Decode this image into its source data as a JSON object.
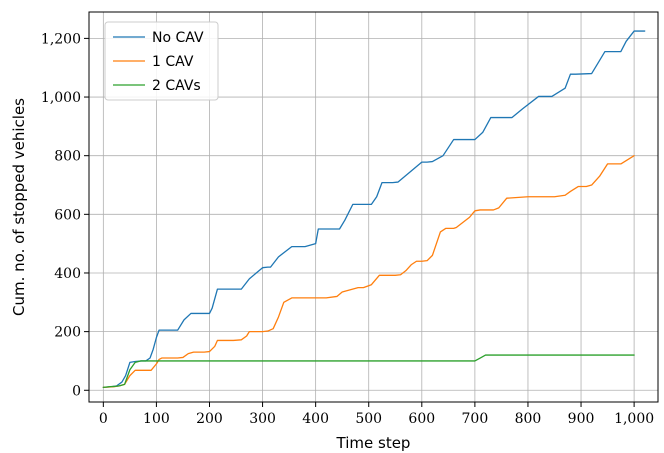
{
  "chart_data": {
    "type": "line",
    "xlabel": "Time step",
    "ylabel": "Cum. no. of stopped vehicles",
    "xlim": [
      -27,
      1045
    ],
    "ylim": [
      -40,
      1290
    ],
    "xticks": [
      0,
      100,
      200,
      300,
      400,
      500,
      600,
      700,
      800,
      900,
      1000
    ],
    "xtick_labels": [
      "0",
      "100",
      "200",
      "300",
      "400",
      "500",
      "600",
      "700",
      "800",
      "900",
      "1,000"
    ],
    "yticks": [
      0,
      200,
      400,
      600,
      800,
      1000,
      1200
    ],
    "ytick_labels": [
      "0",
      "200",
      "400",
      "600",
      "800",
      "1,000",
      "1,200"
    ],
    "grid": true,
    "legend_position": "top-left",
    "colors": {
      "No CAV": "#1f77b4",
      "1 CAV": "#ff7f0e",
      "2 CAVs": "#2ca02c"
    },
    "series": [
      {
        "name": "No CAV",
        "x": [
          0,
          15,
          25,
          35,
          42,
          50,
          60,
          72,
          80,
          88,
          94,
          100,
          105,
          115,
          140,
          152,
          165,
          190,
          200,
          205,
          215,
          250,
          260,
          275,
          300,
          310,
          315,
          330,
          355,
          370,
          380,
          400,
          405,
          420,
          445,
          455,
          470,
          495,
          505,
          515,
          525,
          545,
          555,
          575,
          600,
          610,
          620,
          640,
          660,
          670,
          700,
          715,
          730,
          760,
          770,
          790,
          820,
          830,
          845,
          870,
          880,
          890,
          920,
          930,
          945,
          965,
          975,
          985,
          1000,
          1020
        ],
        "y": [
          10,
          12,
          15,
          28,
          50,
          95,
          98,
          100,
          100,
          110,
          140,
          180,
          205,
          205,
          205,
          240,
          262,
          262,
          262,
          280,
          345,
          345,
          345,
          380,
          418,
          420,
          420,
          455,
          490,
          490,
          490,
          500,
          550,
          550,
          550,
          580,
          634,
          634,
          634,
          660,
          708,
          708,
          710,
          740,
          778,
          778,
          780,
          800,
          855,
          855,
          855,
          880,
          930,
          930,
          930,
          960,
          1002,
          1002,
          1002,
          1030,
          1078,
          1078,
          1080,
          1110,
          1155,
          1155,
          1155,
          1190,
          1225,
          1225
        ]
      },
      {
        "name": "1 CAV",
        "x": [
          0,
          20,
          30,
          40,
          50,
          60,
          80,
          90,
          100,
          105,
          110,
          140,
          150,
          160,
          170,
          190,
          200,
          210,
          215,
          245,
          260,
          270,
          275,
          300,
          310,
          320,
          330,
          340,
          355,
          420,
          440,
          450,
          480,
          490,
          505,
          520,
          550,
          560,
          570,
          580,
          590,
          600,
          610,
          620,
          635,
          645,
          660,
          665,
          690,
          700,
          710,
          735,
          745,
          760,
          800,
          850,
          870,
          880,
          895,
          910,
          920,
          935,
          950,
          975,
          1000
        ],
        "y": [
          10,
          12,
          15,
          20,
          50,
          68,
          68,
          68,
          90,
          105,
          110,
          110,
          112,
          125,
          130,
          130,
          132,
          150,
          170,
          170,
          172,
          185,
          200,
          200,
          202,
          210,
          250,
          300,
          315,
          315,
          320,
          335,
          350,
          350,
          360,
          392,
          392,
          394,
          408,
          428,
          440,
          440,
          442,
          460,
          540,
          552,
          552,
          555,
          590,
          612,
          615,
          615,
          622,
          655,
          660,
          660,
          665,
          678,
          695,
          695,
          700,
          730,
          772,
          772,
          800
        ]
      },
      {
        "name": "2 CAVs",
        "x": [
          0,
          10,
          20,
          30,
          40,
          50,
          60,
          70,
          80,
          90,
          100,
          105,
          700,
          710,
          720,
          1000
        ],
        "y": [
          10,
          12,
          13,
          15,
          20,
          70,
          95,
          100,
          100,
          100,
          100,
          100,
          100,
          110,
          120,
          120
        ]
      }
    ]
  }
}
